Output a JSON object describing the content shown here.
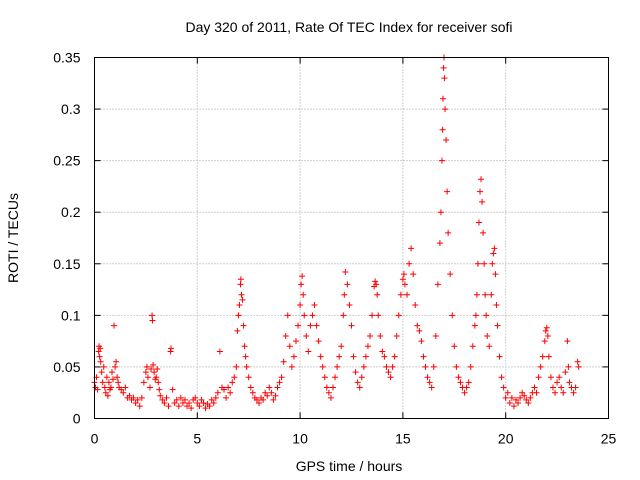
{
  "chart_data": {
    "type": "scatter",
    "title": "Day 320 of 2011, Rate Of TEC Index for receiver sofi",
    "xlabel": "GPS time / hours",
    "ylabel": "ROTI / TECUs",
    "xlim": [
      0,
      25
    ],
    "ylim": [
      0,
      0.35
    ],
    "xticks": [
      0,
      5,
      10,
      15,
      20,
      25
    ],
    "xtick_labels": [
      "0",
      "5",
      "10",
      "15",
      "20",
      "25"
    ],
    "yticks": [
      0,
      0.05,
      0.1,
      0.15,
      0.2,
      0.25,
      0.3,
      0.35
    ],
    "ytick_labels": [
      "0",
      "0.05",
      "0.1",
      "0.15",
      "0.2",
      "0.25",
      "0.3",
      "0.35"
    ],
    "grid": true,
    "legend": "none",
    "marker": "plus",
    "color": "#ff0000",
    "series": [
      {
        "points": [
          [
            0.0,
            0.035
          ],
          [
            0.05,
            0.03
          ],
          [
            0.1,
            0.04
          ],
          [
            0.15,
            0.028
          ],
          [
            0.2,
            0.065
          ],
          [
            0.22,
            0.07
          ],
          [
            0.25,
            0.06
          ],
          [
            0.28,
            0.068
          ],
          [
            0.3,
            0.055
          ],
          [
            0.35,
            0.045
          ],
          [
            0.4,
            0.035
          ],
          [
            0.45,
            0.05
          ],
          [
            0.5,
            0.03
          ],
          [
            0.55,
            0.025
          ],
          [
            0.6,
            0.04
          ],
          [
            0.65,
            0.022
          ],
          [
            0.7,
            0.035
          ],
          [
            0.75,
            0.028
          ],
          [
            0.8,
            0.03
          ],
          [
            0.85,
            0.045
          ],
          [
            0.9,
            0.038
          ],
          [
            0.95,
            0.09
          ],
          [
            1.0,
            0.05
          ],
          [
            1.05,
            0.055
          ],
          [
            1.1,
            0.04
          ],
          [
            1.15,
            0.035
          ],
          [
            1.2,
            0.03
          ],
          [
            1.3,
            0.028
          ],
          [
            1.4,
            0.025
          ],
          [
            1.5,
            0.03
          ],
          [
            1.6,
            0.02
          ],
          [
            1.7,
            0.022
          ],
          [
            1.8,
            0.018
          ],
          [
            1.9,
            0.02
          ],
          [
            2.0,
            0.015
          ],
          [
            2.1,
            0.018
          ],
          [
            2.2,
            0.012
          ],
          [
            2.3,
            0.02
          ],
          [
            2.4,
            0.035
          ],
          [
            2.5,
            0.045
          ],
          [
            2.55,
            0.05
          ],
          [
            2.6,
            0.04
          ],
          [
            2.7,
            0.03
          ],
          [
            2.75,
            0.048
          ],
          [
            2.8,
            0.1
          ],
          [
            2.82,
            0.095
          ],
          [
            2.85,
            0.052
          ],
          [
            2.9,
            0.045
          ],
          [
            2.95,
            0.038
          ],
          [
            3.0,
            0.04
          ],
          [
            3.05,
            0.048
          ],
          [
            3.1,
            0.035
          ],
          [
            3.15,
            0.028
          ],
          [
            3.2,
            0.022
          ],
          [
            3.3,
            0.018
          ],
          [
            3.4,
            0.015
          ],
          [
            3.5,
            0.02
          ],
          [
            3.6,
            0.012
          ],
          [
            3.7,
            0.065
          ],
          [
            3.72,
            0.068
          ],
          [
            3.8,
            0.028
          ],
          [
            3.9,
            0.015
          ],
          [
            4.0,
            0.018
          ],
          [
            4.1,
            0.012
          ],
          [
            4.2,
            0.02
          ],
          [
            4.3,
            0.015
          ],
          [
            4.4,
            0.018
          ],
          [
            4.5,
            0.012
          ],
          [
            4.6,
            0.015
          ],
          [
            4.7,
            0.01
          ],
          [
            4.8,
            0.018
          ],
          [
            4.9,
            0.02
          ],
          [
            5.0,
            0.015
          ],
          [
            5.1,
            0.012
          ],
          [
            5.2,
            0.018
          ],
          [
            5.3,
            0.015
          ],
          [
            5.4,
            0.01
          ],
          [
            5.5,
            0.014
          ],
          [
            5.6,
            0.012
          ],
          [
            5.7,
            0.018
          ],
          [
            5.8,
            0.015
          ],
          [
            5.9,
            0.02
          ],
          [
            6.0,
            0.025
          ],
          [
            6.1,
            0.065
          ],
          [
            6.2,
            0.03
          ],
          [
            6.3,
            0.028
          ],
          [
            6.4,
            0.02
          ],
          [
            6.5,
            0.03
          ],
          [
            6.6,
            0.025
          ],
          [
            6.7,
            0.035
          ],
          [
            6.8,
            0.04
          ],
          [
            6.9,
            0.05
          ],
          [
            6.95,
            0.085
          ],
          [
            7.0,
            0.1
          ],
          [
            7.05,
            0.11
          ],
          [
            7.1,
            0.13
          ],
          [
            7.12,
            0.135
          ],
          [
            7.15,
            0.12
          ],
          [
            7.2,
            0.115
          ],
          [
            7.25,
            0.09
          ],
          [
            7.3,
            0.07
          ],
          [
            7.35,
            0.06
          ],
          [
            7.4,
            0.05
          ],
          [
            7.5,
            0.04
          ],
          [
            7.6,
            0.03
          ],
          [
            7.7,
            0.025
          ],
          [
            7.8,
            0.02
          ],
          [
            7.9,
            0.018
          ],
          [
            8.0,
            0.015
          ],
          [
            8.1,
            0.02
          ],
          [
            8.2,
            0.018
          ],
          [
            8.3,
            0.025
          ],
          [
            8.4,
            0.022
          ],
          [
            8.5,
            0.03
          ],
          [
            8.6,
            0.025
          ],
          [
            8.7,
            0.018
          ],
          [
            8.8,
            0.022
          ],
          [
            8.9,
            0.03
          ],
          [
            9.0,
            0.035
          ],
          [
            9.1,
            0.04
          ],
          [
            9.2,
            0.055
          ],
          [
            9.3,
            0.08
          ],
          [
            9.4,
            0.1
          ],
          [
            9.5,
            0.07
          ],
          [
            9.6,
            0.05
          ],
          [
            9.7,
            0.06
          ],
          [
            9.8,
            0.075
          ],
          [
            9.9,
            0.09
          ],
          [
            10.0,
            0.11
          ],
          [
            10.05,
            0.13
          ],
          [
            10.1,
            0.138
          ],
          [
            10.15,
            0.12
          ],
          [
            10.2,
            0.1
          ],
          [
            10.3,
            0.08
          ],
          [
            10.4,
            0.065
          ],
          [
            10.5,
            0.09
          ],
          [
            10.6,
            0.1
          ],
          [
            10.7,
            0.11
          ],
          [
            10.8,
            0.09
          ],
          [
            10.9,
            0.075
          ],
          [
            11.0,
            0.06
          ],
          [
            11.1,
            0.05
          ],
          [
            11.2,
            0.04
          ],
          [
            11.3,
            0.03
          ],
          [
            11.4,
            0.025
          ],
          [
            11.5,
            0.02
          ],
          [
            11.6,
            0.03
          ],
          [
            11.7,
            0.04
          ],
          [
            11.8,
            0.05
          ],
          [
            11.9,
            0.06
          ],
          [
            12.0,
            0.07
          ],
          [
            12.1,
            0.1
          ],
          [
            12.15,
            0.12
          ],
          [
            12.2,
            0.142
          ],
          [
            12.3,
            0.13
          ],
          [
            12.4,
            0.11
          ],
          [
            12.5,
            0.09
          ],
          [
            12.6,
            0.06
          ],
          [
            12.7,
            0.045
          ],
          [
            12.8,
            0.035
          ],
          [
            12.9,
            0.03
          ],
          [
            13.0,
            0.04
          ],
          [
            13.1,
            0.05
          ],
          [
            13.2,
            0.06
          ],
          [
            13.3,
            0.07
          ],
          [
            13.4,
            0.08
          ],
          [
            13.5,
            0.1
          ],
          [
            13.6,
            0.128
          ],
          [
            13.65,
            0.133
          ],
          [
            13.7,
            0.13
          ],
          [
            13.75,
            0.12
          ],
          [
            13.8,
            0.1
          ],
          [
            13.9,
            0.08
          ],
          [
            14.0,
            0.065
          ],
          [
            14.1,
            0.06
          ],
          [
            14.2,
            0.05
          ],
          [
            14.3,
            0.045
          ],
          [
            14.4,
            0.04
          ],
          [
            14.5,
            0.05
          ],
          [
            14.6,
            0.06
          ],
          [
            14.7,
            0.08
          ],
          [
            14.8,
            0.1
          ],
          [
            14.9,
            0.12
          ],
          [
            15.0,
            0.135
          ],
          [
            15.05,
            0.14
          ],
          [
            15.1,
            0.13
          ],
          [
            15.2,
            0.12
          ],
          [
            15.3,
            0.15
          ],
          [
            15.4,
            0.165
          ],
          [
            15.5,
            0.14
          ],
          [
            15.6,
            0.11
          ],
          [
            15.7,
            0.09
          ],
          [
            15.8,
            0.085
          ],
          [
            15.9,
            0.075
          ],
          [
            16.0,
            0.06
          ],
          [
            16.1,
            0.05
          ],
          [
            16.2,
            0.04
          ],
          [
            16.3,
            0.035
          ],
          [
            16.4,
            0.03
          ],
          [
            16.5,
            0.05
          ],
          [
            16.6,
            0.08
          ],
          [
            16.7,
            0.13
          ],
          [
            16.8,
            0.17
          ],
          [
            16.85,
            0.2
          ],
          [
            16.9,
            0.25
          ],
          [
            16.93,
            0.28
          ],
          [
            16.95,
            0.31
          ],
          [
            16.98,
            0.34
          ],
          [
            17.0,
            0.35
          ],
          [
            17.02,
            0.33
          ],
          [
            17.05,
            0.3
          ],
          [
            17.1,
            0.27
          ],
          [
            17.15,
            0.22
          ],
          [
            17.2,
            0.18
          ],
          [
            17.3,
            0.14
          ],
          [
            17.4,
            0.1
          ],
          [
            17.5,
            0.07
          ],
          [
            17.6,
            0.05
          ],
          [
            17.7,
            0.04
          ],
          [
            17.8,
            0.035
          ],
          [
            17.9,
            0.03
          ],
          [
            18.0,
            0.025
          ],
          [
            18.1,
            0.03
          ],
          [
            18.2,
            0.035
          ],
          [
            18.3,
            0.05
          ],
          [
            18.4,
            0.07
          ],
          [
            18.5,
            0.09
          ],
          [
            18.55,
            0.1
          ],
          [
            18.6,
            0.12
          ],
          [
            18.65,
            0.15
          ],
          [
            18.7,
            0.19
          ],
          [
            18.75,
            0.22
          ],
          [
            18.8,
            0.232
          ],
          [
            18.85,
            0.21
          ],
          [
            18.9,
            0.18
          ],
          [
            18.95,
            0.15
          ],
          [
            19.0,
            0.12
          ],
          [
            19.05,
            0.1
          ],
          [
            19.1,
            0.08
          ],
          [
            19.2,
            0.07
          ],
          [
            19.3,
            0.12
          ],
          [
            19.35,
            0.15
          ],
          [
            19.4,
            0.16
          ],
          [
            19.45,
            0.165
          ],
          [
            19.5,
            0.14
          ],
          [
            19.55,
            0.11
          ],
          [
            19.6,
            0.09
          ],
          [
            19.7,
            0.06
          ],
          [
            19.8,
            0.04
          ],
          [
            19.9,
            0.03
          ],
          [
            20.0,
            0.02
          ],
          [
            20.1,
            0.025
          ],
          [
            20.2,
            0.015
          ],
          [
            20.3,
            0.02
          ],
          [
            20.4,
            0.012
          ],
          [
            20.5,
            0.018
          ],
          [
            20.6,
            0.015
          ],
          [
            20.7,
            0.02
          ],
          [
            20.8,
            0.025
          ],
          [
            20.9,
            0.022
          ],
          [
            21.0,
            0.018
          ],
          [
            21.1,
            0.015
          ],
          [
            21.2,
            0.02
          ],
          [
            21.3,
            0.025
          ],
          [
            21.4,
            0.03
          ],
          [
            21.5,
            0.025
          ],
          [
            21.6,
            0.04
          ],
          [
            21.7,
            0.05
          ],
          [
            21.8,
            0.06
          ],
          [
            21.9,
            0.075
          ],
          [
            21.95,
            0.085
          ],
          [
            22.0,
            0.088
          ],
          [
            22.05,
            0.08
          ],
          [
            22.1,
            0.06
          ],
          [
            22.2,
            0.04
          ],
          [
            22.3,
            0.03
          ],
          [
            22.4,
            0.025
          ],
          [
            22.5,
            0.035
          ],
          [
            22.6,
            0.04
          ],
          [
            22.7,
            0.03
          ],
          [
            22.8,
            0.025
          ],
          [
            22.9,
            0.045
          ],
          [
            23.0,
            0.075
          ],
          [
            23.05,
            0.05
          ],
          [
            23.1,
            0.035
          ],
          [
            23.2,
            0.03
          ],
          [
            23.3,
            0.025
          ],
          [
            23.4,
            0.03
          ],
          [
            23.5,
            0.055
          ],
          [
            23.55,
            0.05
          ]
        ]
      }
    ]
  }
}
